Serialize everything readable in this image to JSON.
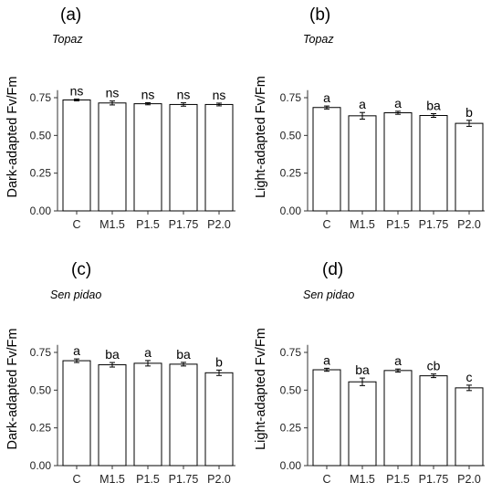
{
  "chart_data": [
    {
      "type": "bar",
      "panel": "(a)",
      "subtitle": "Topaz",
      "ylabel": "Dark-adapted Fv/Fm",
      "categories": [
        "C",
        "M1.5",
        "P1.5",
        "P1.75",
        "P2.0"
      ],
      "values": [
        0.735,
        0.715,
        0.71,
        0.705,
        0.705
      ],
      "errors": [
        0.006,
        0.013,
        0.007,
        0.011,
        0.009
      ],
      "labels": [
        "ns",
        "ns",
        "ns",
        "ns",
        "ns"
      ],
      "yticks": [
        "0.00",
        "0.25",
        "0.50",
        "0.75"
      ],
      "ylim": [
        0,
        0.8
      ],
      "grid": false
    },
    {
      "type": "bar",
      "panel": "(b)",
      "subtitle": "Topaz",
      "ylabel": "Light-adapted Fv/Fm",
      "categories": [
        "C",
        "M1.5",
        "P1.5",
        "P1.75",
        "P2.0"
      ],
      "values": [
        0.685,
        0.63,
        0.65,
        0.632,
        0.58
      ],
      "errors": [
        0.01,
        0.022,
        0.01,
        0.012,
        0.02
      ],
      "labels": [
        "a",
        "a",
        "a",
        "ba",
        "b"
      ],
      "yticks": [
        "0.00",
        "0.25",
        "0.50",
        "0.75"
      ],
      "ylim": [
        0,
        0.8
      ],
      "grid": false
    },
    {
      "type": "bar",
      "panel": "(c)",
      "subtitle": "Sen pidao",
      "ylabel": "Dark-adapted Fv/Fm",
      "categories": [
        "C",
        "M1.5",
        "P1.5",
        "P1.75",
        "P2.0"
      ],
      "values": [
        0.695,
        0.668,
        0.678,
        0.672,
        0.615
      ],
      "errors": [
        0.012,
        0.015,
        0.018,
        0.012,
        0.018
      ],
      "labels": [
        "a",
        "ba",
        "a",
        "ba",
        "b"
      ],
      "yticks": [
        "0.00",
        "0.25",
        "0.50",
        "0.75"
      ],
      "ylim": [
        0,
        0.8
      ],
      "grid": false
    },
    {
      "type": "bar",
      "panel": "(d)",
      "subtitle": "Sen pidao",
      "ylabel": "Light-adapted Fv/Fm",
      "categories": [
        "C",
        "M1.5",
        "P1.5",
        "P1.75",
        "P2.0"
      ],
      "values": [
        0.635,
        0.555,
        0.63,
        0.595,
        0.515
      ],
      "errors": [
        0.01,
        0.025,
        0.01,
        0.012,
        0.018
      ],
      "labels": [
        "a",
        "ba",
        "a",
        "cb",
        "c"
      ],
      "yticks": [
        "0.00",
        "0.25",
        "0.50",
        "0.75"
      ],
      "ylim": [
        0,
        0.8
      ],
      "grid": false
    }
  ]
}
